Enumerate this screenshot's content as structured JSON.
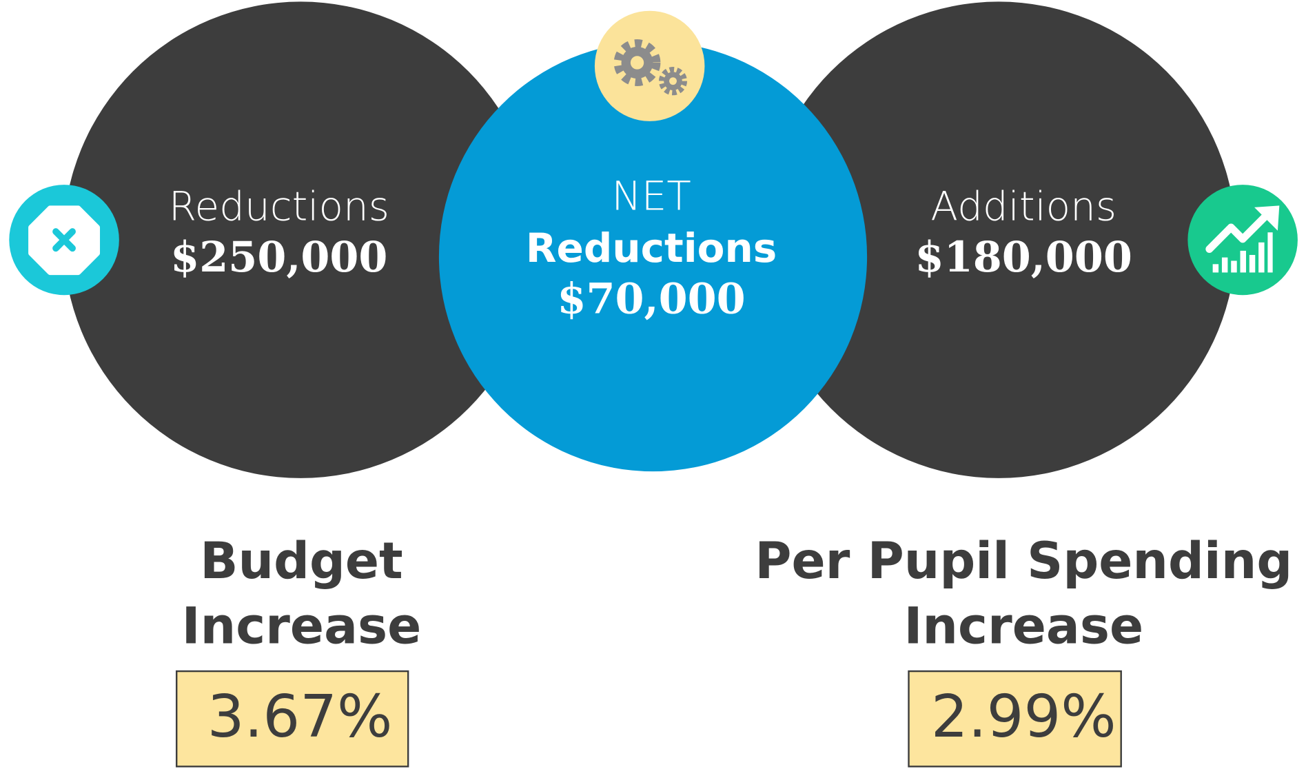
{
  "circles": {
    "left": {
      "label": "Reductions",
      "amount": "$250,000"
    },
    "center": {
      "line1": "NET",
      "line2": "Reductions",
      "amount": "$70,000"
    },
    "right": {
      "label": "Additions",
      "amount": "$180,000"
    }
  },
  "stats": [
    {
      "line1": "Budget",
      "line2": "Increase",
      "value": "3.67%"
    },
    {
      "line1": "Per Pupil Spending",
      "line2": "Increase",
      "value": "2.99%"
    }
  ]
}
